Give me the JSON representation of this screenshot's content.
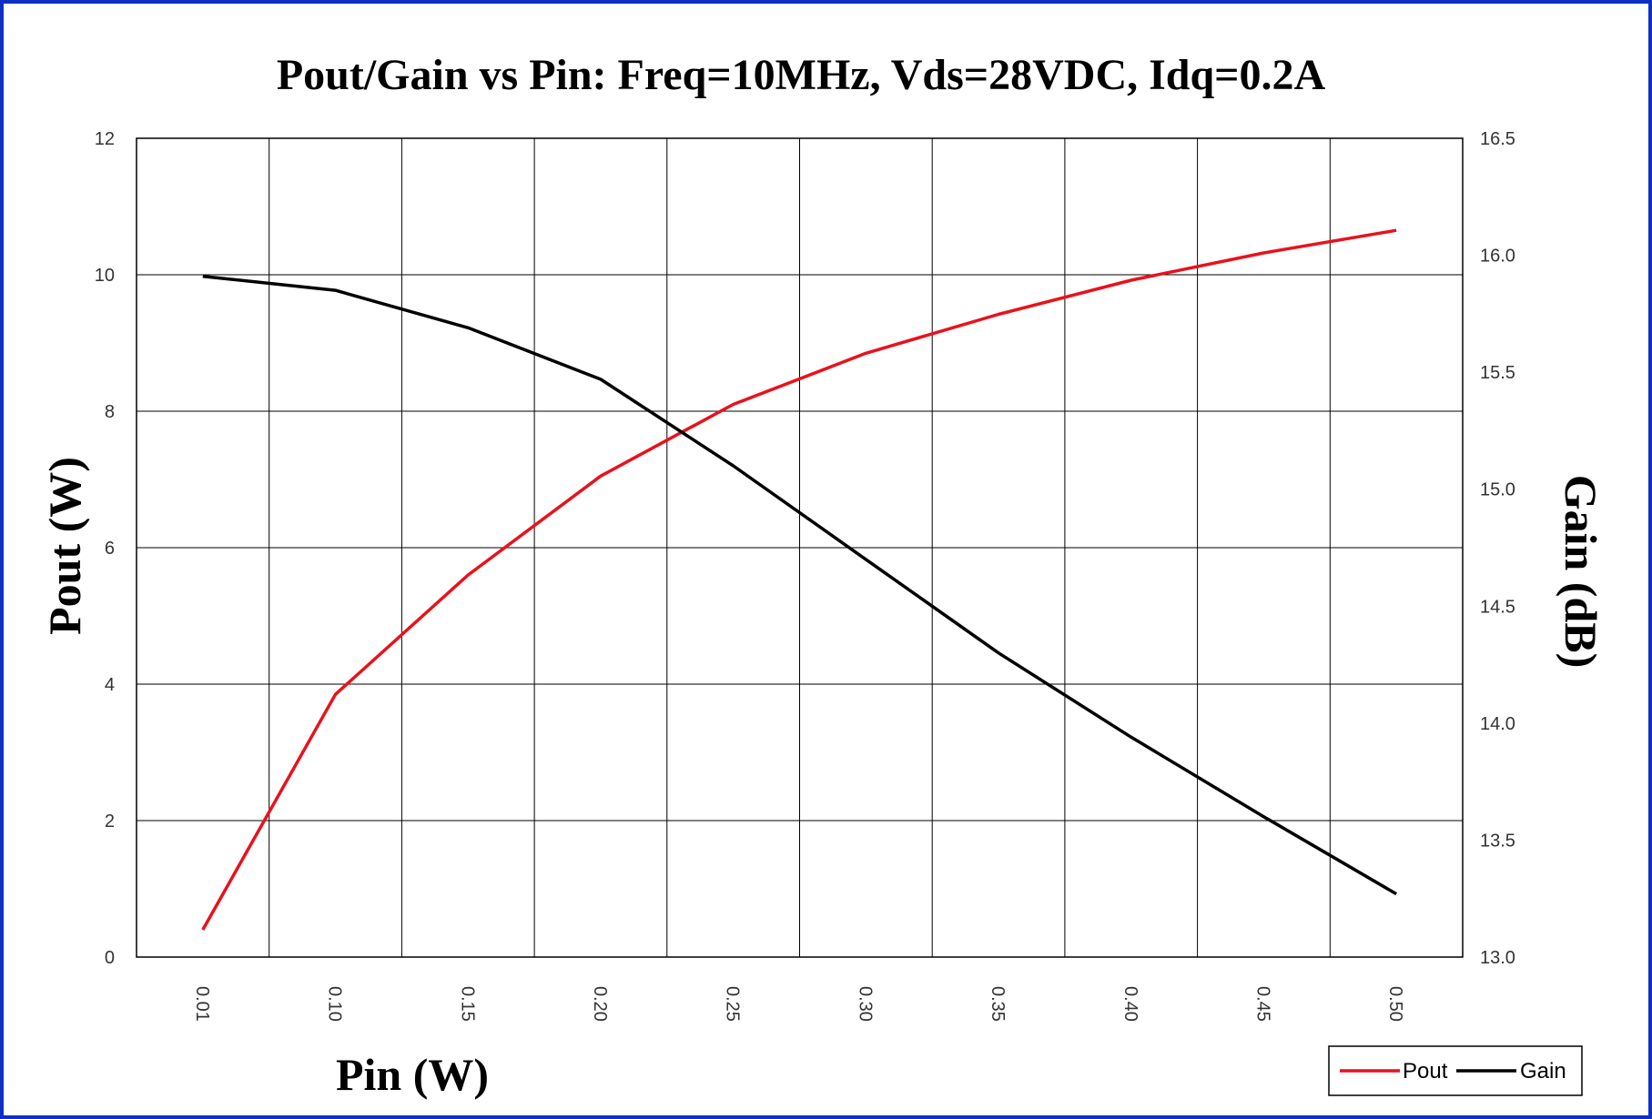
{
  "chart_data": {
    "type": "line",
    "title": "Pout/Gain vs Pin: Freq=10MHz, Vds=28VDC, Idq=0.2A",
    "xlabel": "Pin (W)",
    "ylabel": "Pout (W)",
    "y2label": "Gain (dB)",
    "categories": [
      "0.01",
      "0.10",
      "0.15",
      "0.20",
      "0.25",
      "0.30",
      "0.35",
      "0.40",
      "0.45",
      "0.50"
    ],
    "ylim": [
      0,
      12
    ],
    "y2lim": [
      13.0,
      16.5
    ],
    "yticks": [
      "0",
      "2",
      "4",
      "6",
      "8",
      "10",
      "12"
    ],
    "y2ticks": [
      "13.0",
      "13.5",
      "14.0",
      "14.5",
      "15.0",
      "15.5",
      "16.0",
      "16.5"
    ],
    "grid": true,
    "legend_position": "bottom-right",
    "series": [
      {
        "name": "Pout",
        "axis": "left",
        "color": "#e8121c",
        "values": [
          0.4,
          3.85,
          5.6,
          7.05,
          8.1,
          8.85,
          9.42,
          9.92,
          10.32,
          10.65
        ]
      },
      {
        "name": "Gain",
        "axis": "right",
        "color": "#000000",
        "values": [
          15.91,
          15.85,
          15.69,
          15.47,
          15.1,
          14.7,
          14.3,
          13.94,
          13.6,
          13.27
        ]
      }
    ]
  }
}
